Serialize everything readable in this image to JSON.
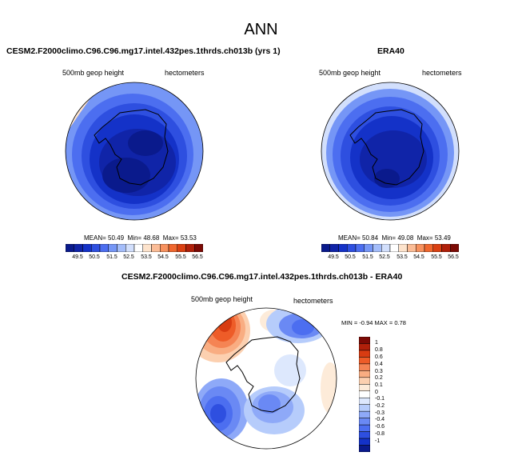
{
  "main_title": "ANN",
  "palette": {
    "abs": [
      "#0a1a8c",
      "#1024a8",
      "#1432c8",
      "#2e4fe0",
      "#4c6ef0",
      "#7596f6",
      "#a4bdfa",
      "#d2dffc",
      "#ffffff",
      "#fde3cc",
      "#fbbc96",
      "#f7915e",
      "#f0672e",
      "#da4012",
      "#b0200a",
      "#7c0a05"
    ],
    "diff": [
      "#0a1a8c",
      "#1432c8",
      "#2e4fe0",
      "#4c6ef0",
      "#6a89f4",
      "#8ea9f8",
      "#b6ccfb",
      "#dde8fd",
      "#ffffff",
      "#fdebd9",
      "#fcd0b0",
      "#f9ad82",
      "#f58454",
      "#ee5c28",
      "#d83c12",
      "#b0200a",
      "#7c0a05"
    ]
  },
  "chart_data": [
    {
      "type": "heatmap",
      "title": "CESM2.F2000climo.C96.C96.mg17.intel.432pes.1thrds.ch013b (yrs 1)",
      "variable_label": "500mb geop height",
      "units_label": "hectometers",
      "stats": {
        "mean_label": "MEAN=",
        "mean": "50.49",
        "min_label": "Min=",
        "min": "48.68",
        "max_label": "Max=",
        "max": "53.53"
      },
      "colorbar_ticks": [
        "49.5",
        "50.5",
        "51.5",
        "52.5",
        "53.5",
        "54.5",
        "55.5",
        "56.5"
      ]
    },
    {
      "type": "heatmap",
      "title": "ERA40",
      "variable_label": "500mb geop height",
      "units_label": "hectometers",
      "stats": {
        "mean_label": "MEAN=",
        "mean": "50.84",
        "min_label": "Min=",
        "min": "49.08",
        "max_label": "Max=",
        "max": "53.49"
      },
      "colorbar_ticks": [
        "49.5",
        "50.5",
        "51.5",
        "52.5",
        "53.5",
        "54.5",
        "55.5",
        "56.5"
      ]
    },
    {
      "type": "heatmap",
      "title": "CESM2.F2000climo.C96.C96.mg17.intel.432pes.1thrds.ch013b - ERA40",
      "variable_label": "500mb geop height",
      "units_label": "hectometers",
      "stats": {
        "min_label": "MIN =",
        "min": "-0.94",
        "max_label": "MAX =",
        "max": "0.78"
      },
      "colorbar_ticks": [
        "1",
        "0.8",
        "0.6",
        "0.4",
        "0.3",
        "0.2",
        "0.1",
        "0",
        "-0.1",
        "-0.2",
        "-0.3",
        "-0.4",
        "-0.6",
        "-0.8",
        "-1"
      ]
    }
  ]
}
